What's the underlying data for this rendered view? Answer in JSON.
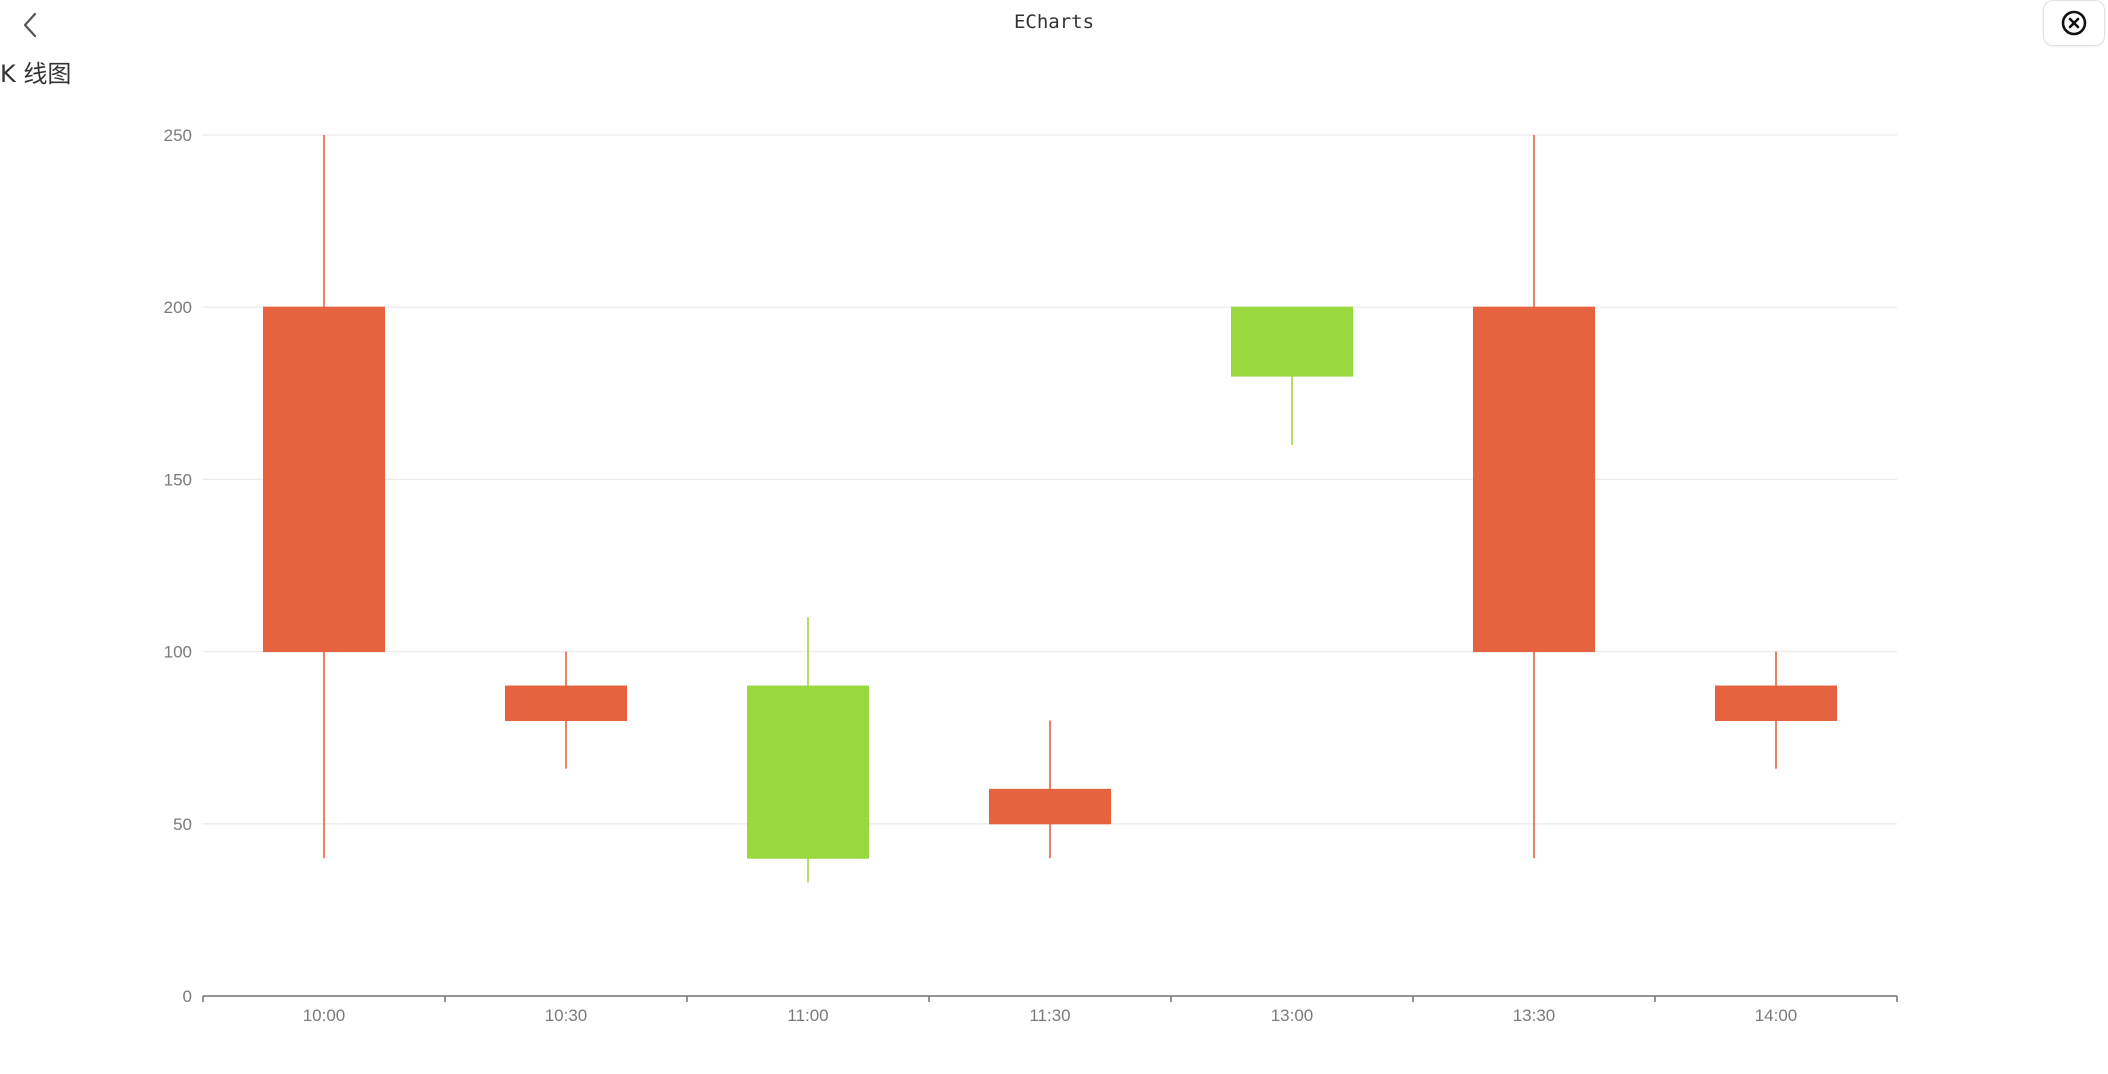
{
  "header": {
    "title": "ECharts",
    "back_icon": "chevron-left-icon",
    "close_icon": "close-circle-icon"
  },
  "page": {
    "subtitle": "K 线图"
  },
  "colors": {
    "up": "#e5633f",
    "down": "#9ad840",
    "grid": "#ebebeb",
    "axis": "#6e7079",
    "tick_label": "#7a7a7a"
  },
  "chart_data": {
    "type": "candlestick",
    "categories": [
      "10:00",
      "10:30",
      "11:00",
      "11:30",
      "13:00",
      "13:30",
      "14:00"
    ],
    "series": [
      {
        "ohlc": [
          {
            "open": 100,
            "close": 200,
            "low": 40,
            "high": 250
          },
          {
            "open": 80,
            "close": 90,
            "low": 66,
            "high": 100
          },
          {
            "open": 90,
            "close": 40,
            "low": 33,
            "high": 110
          },
          {
            "open": 50,
            "close": 60,
            "low": 40,
            "high": 80
          },
          {
            "open": 200,
            "close": 180,
            "low": 160,
            "high": 200
          },
          {
            "open": 100,
            "close": 200,
            "low": 40,
            "high": 250
          },
          {
            "open": 80,
            "close": 90,
            "low": 66,
            "high": 100
          }
        ]
      }
    ],
    "ylim": [
      0,
      250
    ],
    "yticks": [
      0,
      50,
      100,
      150,
      200,
      250
    ],
    "grid": true
  }
}
